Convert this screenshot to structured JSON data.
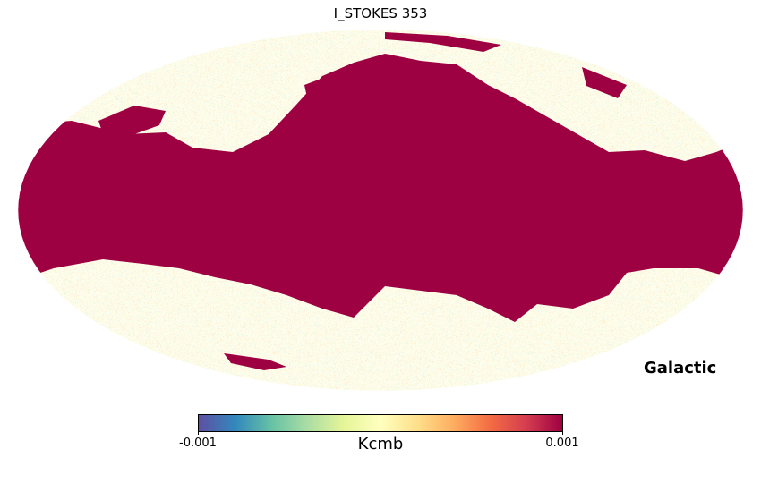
{
  "map": {
    "title": "I_STOKES 353",
    "coordinate_system": "Galactic",
    "projection": "mollweide",
    "colormap": "Spectral_r",
    "saturated_color": "#9e0142",
    "colorbar": {
      "min_label": "-0.001",
      "max_label": "0.001",
      "unit": "Kcmb",
      "min": -0.001,
      "max": 0.001,
      "colors": [
        "#5e4fa2",
        "#3288bd",
        "#66c2a5",
        "#abdda4",
        "#e6f598",
        "#ffffbf",
        "#fee08b",
        "#fdae61",
        "#f46d43",
        "#d53e4f",
        "#9e0142"
      ]
    }
  }
}
